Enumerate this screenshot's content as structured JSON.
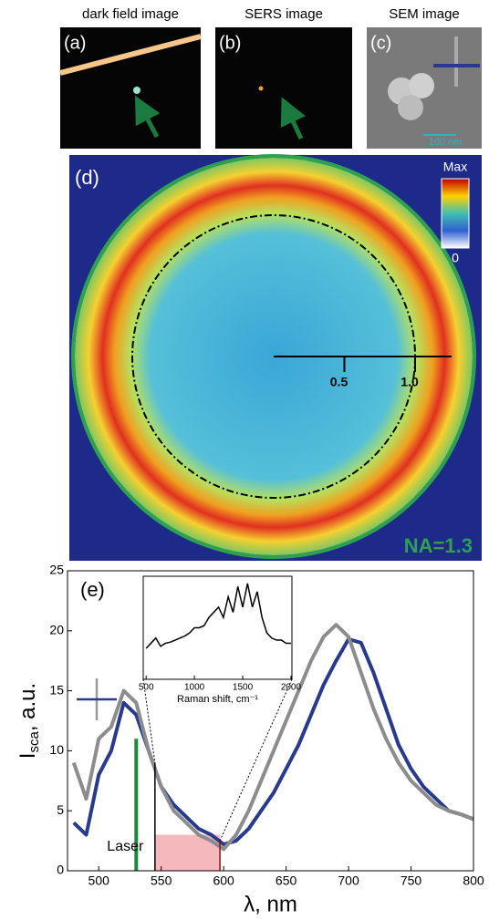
{
  "panels": {
    "a": {
      "title": "dark field image",
      "label": "(a)"
    },
    "b": {
      "title": "SERS image",
      "label": "(b)"
    },
    "c": {
      "title": "SEM image",
      "label": "(c)",
      "scale_bar": "100 nm"
    },
    "d": {
      "label": "(d)",
      "colorbar_max": "Max",
      "colorbar_min": "0",
      "na_label": "NA=1.3",
      "scale_ticks": [
        0.5,
        {
          "value": 1.0,
          "label": "1.0"
        }
      ]
    }
  },
  "chart_data": {
    "type": "line",
    "panel_label": "(e)",
    "xlabel": "λ, nm",
    "ylabel_main": "I",
    "ylabel_sub": "sca",
    "ylabel_rest": ", a.u.",
    "x": [
      480,
      490,
      500,
      510,
      520,
      530,
      540,
      550,
      560,
      570,
      580,
      590,
      600,
      610,
      620,
      630,
      640,
      650,
      660,
      670,
      680,
      690,
      700,
      710,
      720,
      730,
      740,
      750,
      760,
      770,
      780,
      790,
      800
    ],
    "series": [
      {
        "color": "#283a8c",
        "values": [
          4,
          3,
          8,
          10,
          14,
          13,
          10,
          7,
          5.5,
          4.5,
          3.5,
          3,
          2.2,
          2.5,
          3.5,
          5,
          6.5,
          8.5,
          10.5,
          13,
          15.5,
          17.5,
          19.3,
          19,
          16.5,
          13.5,
          10.5,
          8.5,
          7,
          6,
          5,
          4.7,
          4.3
        ]
      },
      {
        "color": "#8c8c8c",
        "values": [
          9,
          6,
          11,
          12,
          15,
          14,
          10,
          7,
          5,
          4,
          3,
          2.5,
          1.8,
          3,
          5,
          7.5,
          10,
          12.5,
          15,
          17.5,
          19.5,
          20.5,
          19.5,
          16.5,
          13.5,
          11,
          9,
          7.5,
          6.5,
          5.5,
          5,
          4.7,
          4.3
        ]
      }
    ],
    "xlim": [
      475,
      800
    ],
    "ylim": [
      0,
      25
    ],
    "xticks": [
      500,
      550,
      600,
      650,
      700,
      750,
      800
    ],
    "yticks": [
      0,
      5,
      10,
      15,
      20,
      25
    ],
    "laser_label": "Laser",
    "laser_x": 530,
    "laser_color": "#1a8a3c",
    "shade": [
      545,
      597
    ],
    "shade_color": "#f4b8bd",
    "inset": {
      "xlabel": "Raman shift, cm⁻¹",
      "xlim": [
        470,
        2010
      ],
      "ylim": [
        0,
        10
      ],
      "xticks": [
        500,
        1000,
        1500,
        2000
      ],
      "x": [
        500,
        550,
        600,
        650,
        700,
        750,
        800,
        850,
        900,
        950,
        1000,
        1050,
        1100,
        1150,
        1200,
        1250,
        1300,
        1350,
        1400,
        1450,
        1500,
        1550,
        1600,
        1650,
        1700,
        1750,
        1800,
        1850,
        1900,
        1950,
        2000
      ],
      "values": [
        3,
        3.5,
        4,
        3.2,
        3.5,
        3.6,
        3.8,
        4,
        4.2,
        4.5,
        5,
        5,
        5.2,
        6,
        6.5,
        7,
        6,
        8,
        6.5,
        9,
        7,
        9.3,
        7,
        8.5,
        6,
        4.5,
        4,
        3.8,
        3.8,
        3.5,
        3.5
      ],
      "color": "#000000"
    }
  }
}
